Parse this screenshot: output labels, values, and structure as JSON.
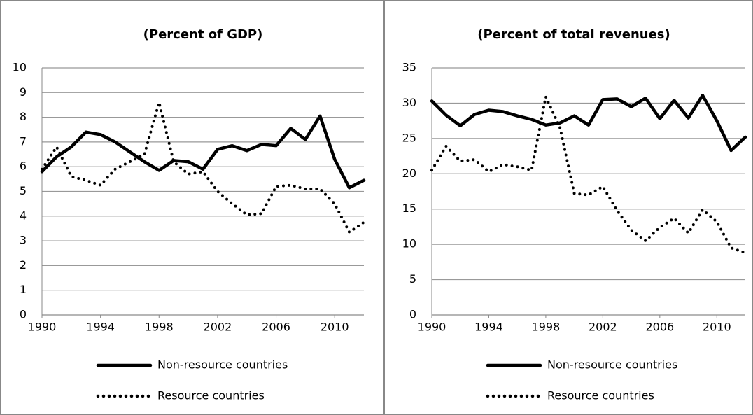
{
  "chart_data": [
    {
      "type": "line",
      "title": "(Percent of GDP)",
      "x": [
        1990,
        1991,
        1992,
        1993,
        1994,
        1995,
        1996,
        1997,
        1998,
        1999,
        2000,
        2001,
        2002,
        2003,
        2004,
        2005,
        2006,
        2007,
        2008,
        2009,
        2010,
        2011,
        2012
      ],
      "xlim": [
        1990,
        2012
      ],
      "xticks": [
        1990,
        1994,
        1998,
        2002,
        2006,
        2010
      ],
      "ylim": [
        0,
        10
      ],
      "yticks": [
        0,
        1,
        2,
        3,
        4,
        5,
        6,
        7,
        8,
        9,
        10
      ],
      "grid": true,
      "series": [
        {
          "name": "Non-resource countries",
          "color": "#000000",
          "style": "solid",
          "values": [
            5.8,
            6.4,
            6.8,
            7.4,
            7.3,
            7.0,
            6.6,
            6.2,
            5.85,
            6.25,
            6.2,
            5.9,
            6.7,
            6.85,
            6.65,
            6.9,
            6.85,
            7.55,
            7.1,
            8.05,
            6.3,
            5.15,
            5.45
          ]
        },
        {
          "name": "Resource countries",
          "color": "#000000",
          "style": "dotted",
          "values": [
            5.9,
            6.8,
            5.6,
            5.45,
            5.25,
            5.9,
            6.2,
            6.5,
            8.6,
            6.2,
            5.7,
            5.8,
            5.0,
            4.5,
            4.05,
            4.1,
            5.2,
            5.25,
            5.1,
            5.1,
            4.5,
            3.35,
            3.75
          ]
        }
      ]
    },
    {
      "type": "line",
      "title": "(Percent of total revenues)",
      "x": [
        1990,
        1991,
        1992,
        1993,
        1994,
        1995,
        1996,
        1997,
        1998,
        1999,
        2000,
        2001,
        2002,
        2003,
        2004,
        2005,
        2006,
        2007,
        2008,
        2009,
        2010,
        2011,
        2012
      ],
      "xlim": [
        1990,
        2012
      ],
      "xticks": [
        1990,
        1994,
        1998,
        2002,
        2006,
        2010
      ],
      "ylim": [
        0,
        35
      ],
      "yticks": [
        0,
        5,
        10,
        15,
        20,
        25,
        30,
        35
      ],
      "grid": true,
      "series": [
        {
          "name": "Non-resource countries",
          "color": "#000000",
          "style": "solid",
          "values": [
            30.3,
            28.3,
            26.8,
            28.4,
            29,
            28.8,
            28.2,
            27.7,
            26.9,
            27.2,
            28.2,
            26.9,
            30.5,
            30.6,
            29.5,
            30.7,
            27.8,
            30.4,
            27.9,
            31.1,
            27.5,
            23.3,
            25.2
          ]
        },
        {
          "name": "Resource countries",
          "color": "#000000",
          "style": "dotted",
          "values": [
            20.5,
            23.9,
            21.8,
            22,
            20.3,
            21.3,
            21,
            20.5,
            30.9,
            26.5,
            17.2,
            17,
            18.2,
            14.8,
            12,
            10.5,
            12.4,
            13.7,
            11.6,
            14.9,
            13.2,
            9.5,
            8.8
          ]
        }
      ]
    }
  ]
}
